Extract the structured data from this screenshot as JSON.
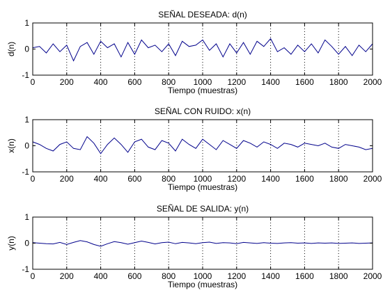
{
  "chart_data": [
    {
      "type": "line",
      "title": "SEÑAL DESEADA: d(n)",
      "xlabel": "Tiempo (muestras)",
      "ylabel": "d(n)",
      "xlim": [
        0,
        2000
      ],
      "ylim": [
        -1,
        1
      ],
      "xticks": [
        0,
        200,
        400,
        600,
        800,
        1000,
        1200,
        1400,
        1600,
        1800,
        2000
      ],
      "yticks": [
        -1,
        0,
        1
      ],
      "grid": "x-only dotted",
      "series": [
        {
          "color": "#00008b",
          "x": [
            0,
            40,
            80,
            120,
            160,
            200,
            240,
            280,
            320,
            360,
            400,
            440,
            480,
            520,
            560,
            600,
            640,
            680,
            720,
            760,
            800,
            840,
            880,
            920,
            960,
            1000,
            1040,
            1080,
            1120,
            1160,
            1200,
            1240,
            1280,
            1320,
            1360,
            1400,
            1440,
            1480,
            1520,
            1560,
            1600,
            1640,
            1680,
            1720,
            1760,
            1800,
            1840,
            1880,
            1920,
            1960,
            2000
          ],
          "y": [
            0.05,
            0.1,
            -0.15,
            0.2,
            -0.1,
            0.15,
            -0.45,
            0.1,
            0.25,
            -0.2,
            0.3,
            0.05,
            0.2,
            -0.3,
            0.25,
            -0.2,
            0.35,
            0.05,
            0.15,
            -0.1,
            0.2,
            -0.25,
            0.3,
            0.1,
            0.15,
            0.35,
            -0.05,
            0.2,
            -0.3,
            0.2,
            -0.15,
            0.25,
            -0.2,
            0.3,
            0.1,
            0.4,
            -0.1,
            0.05,
            -0.2,
            0.15,
            -0.1,
            0.2,
            -0.15,
            0.35,
            0.1,
            -0.2,
            0.1,
            -0.25,
            0.15,
            -0.1,
            0.2
          ]
        }
      ]
    },
    {
      "type": "line",
      "title": "SEÑAL CON RUIDO: x(n)",
      "xlabel": "Tiempo (muestras)",
      "ylabel": "x(n)",
      "xlim": [
        0,
        2000
      ],
      "ylim": [
        -1,
        1
      ],
      "xticks": [
        0,
        200,
        400,
        600,
        800,
        1000,
        1200,
        1400,
        1600,
        1800,
        2000
      ],
      "yticks": [
        -1,
        0,
        1
      ],
      "grid": "x-only dotted",
      "series": [
        {
          "color": "#00008b",
          "x": [
            0,
            40,
            80,
            120,
            160,
            200,
            240,
            280,
            320,
            360,
            400,
            440,
            480,
            520,
            560,
            600,
            640,
            680,
            720,
            760,
            800,
            840,
            880,
            920,
            960,
            1000,
            1040,
            1080,
            1120,
            1160,
            1200,
            1240,
            1280,
            1320,
            1360,
            1400,
            1440,
            1480,
            1520,
            1560,
            1600,
            1640,
            1680,
            1720,
            1760,
            1800,
            1840,
            1880,
            1920,
            1960,
            2000
          ],
          "y": [
            0.15,
            0.05,
            -0.1,
            -0.2,
            0.05,
            0.15,
            -0.1,
            -0.15,
            0.35,
            0.1,
            -0.3,
            0.05,
            0.3,
            0.05,
            -0.25,
            0.15,
            0.25,
            -0.05,
            -0.15,
            0.2,
            0.1,
            -0.2,
            0.25,
            0.05,
            -0.1,
            0.25,
            0.05,
            -0.15,
            0.2,
            0.05,
            -0.1,
            0.2,
            0.1,
            -0.05,
            0.15,
            0.05,
            -0.1,
            0.1,
            0.05,
            -0.05,
            0.1,
            0.05,
            0.0,
            0.1,
            -0.05,
            -0.1,
            0.05,
            0.0,
            -0.05,
            -0.15,
            -0.1
          ]
        }
      ]
    },
    {
      "type": "line",
      "title": "SEÑAL DE SALIDA: y(n)",
      "xlabel": "Tiempo (muestras)",
      "ylabel": "y(n)",
      "xlim": [
        0,
        2000
      ],
      "ylim": [
        -1,
        1
      ],
      "xticks": [
        0,
        200,
        400,
        600,
        800,
        1000,
        1200,
        1400,
        1600,
        1800,
        2000
      ],
      "yticks": [
        -1,
        0,
        1
      ],
      "grid": "x-only dotted",
      "series": [
        {
          "color": "#00008b",
          "x": [
            0,
            40,
            80,
            120,
            160,
            200,
            240,
            280,
            320,
            360,
            400,
            440,
            480,
            520,
            560,
            600,
            640,
            680,
            720,
            760,
            800,
            840,
            880,
            920,
            960,
            1000,
            1040,
            1080,
            1120,
            1160,
            1200,
            1240,
            1280,
            1320,
            1360,
            1400,
            1440,
            1480,
            1520,
            1560,
            1600,
            1640,
            1680,
            1720,
            1760,
            1800,
            1840,
            1880,
            1920,
            1960,
            2000
          ],
          "y": [
            0.02,
            0.0,
            -0.02,
            -0.03,
            0.03,
            -0.05,
            0.03,
            0.1,
            0.05,
            -0.05,
            -0.12,
            -0.02,
            0.06,
            0.02,
            -0.04,
            0.02,
            0.08,
            0.03,
            -0.03,
            0.02,
            0.04,
            -0.02,
            0.03,
            0.01,
            -0.02,
            0.02,
            0.04,
            -0.01,
            0.02,
            0.01,
            -0.02,
            0.03,
            0.01,
            -0.01,
            0.02,
            0.0,
            -0.01,
            0.01,
            0.02,
            0.0,
            0.01,
            -0.01,
            0.01,
            0.0,
            0.01,
            -0.01,
            0.0,
            0.01,
            -0.01,
            0.0,
            0.01
          ]
        }
      ]
    }
  ]
}
